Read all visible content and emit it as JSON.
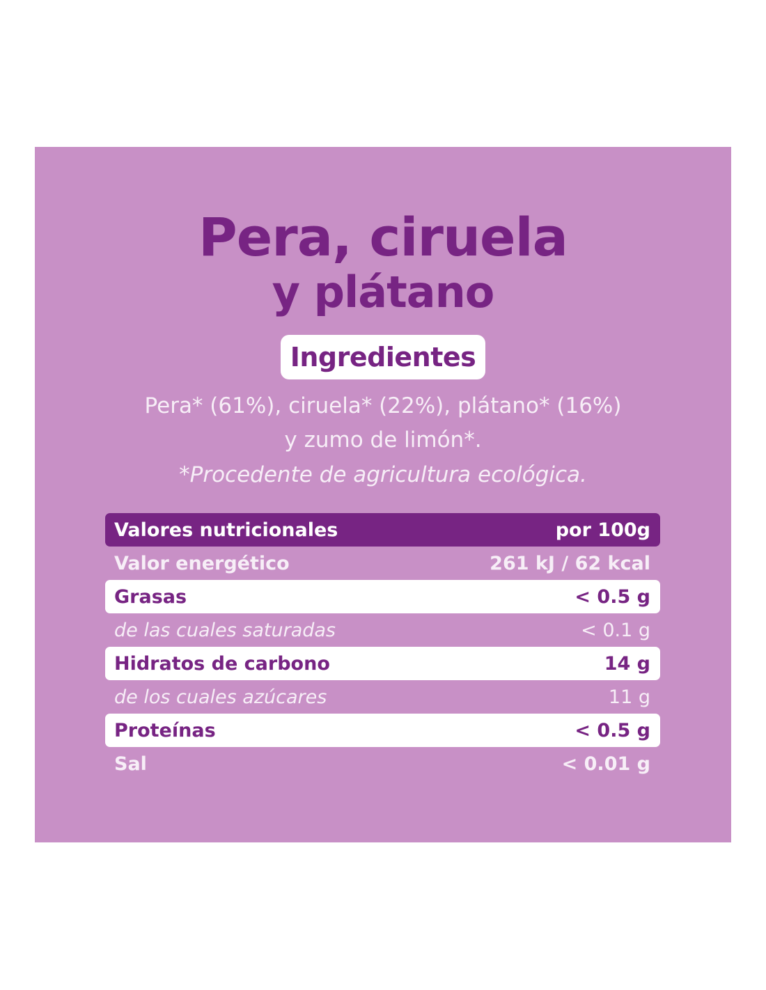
{
  "product": {
    "title_line1": "Pera, ciruela",
    "title_line2": "y plátano"
  },
  "ingredients": {
    "heading": "Ingredientes",
    "line1": "Pera* (61%), ciruela* (22%), plátano* (16%)",
    "line2": "y zumo de limón*.",
    "footnote": "*Procedente de agricultura ecológica."
  },
  "nutrition": {
    "header_label": "Valores nutricionales",
    "header_value": "por 100g",
    "rows": [
      {
        "label": "Valor energético",
        "value": "261 kJ / 62 kcal"
      },
      {
        "label": "Grasas",
        "value": "< 0.5 g"
      },
      {
        "label": "de las cuales saturadas",
        "value": "< 0.1 g"
      },
      {
        "label": "Hidratos de carbono",
        "value": "14 g"
      },
      {
        "label": "de los cuales azúcares",
        "value": "11 g"
      },
      {
        "label": "Proteínas",
        "value": "< 0.5 g"
      },
      {
        "label": "Sal",
        "value": "< 0.01 g"
      }
    ]
  },
  "colors": {
    "panel_background": "#c890c6",
    "brand_purple": "#772483",
    "white": "#ffffff"
  }
}
